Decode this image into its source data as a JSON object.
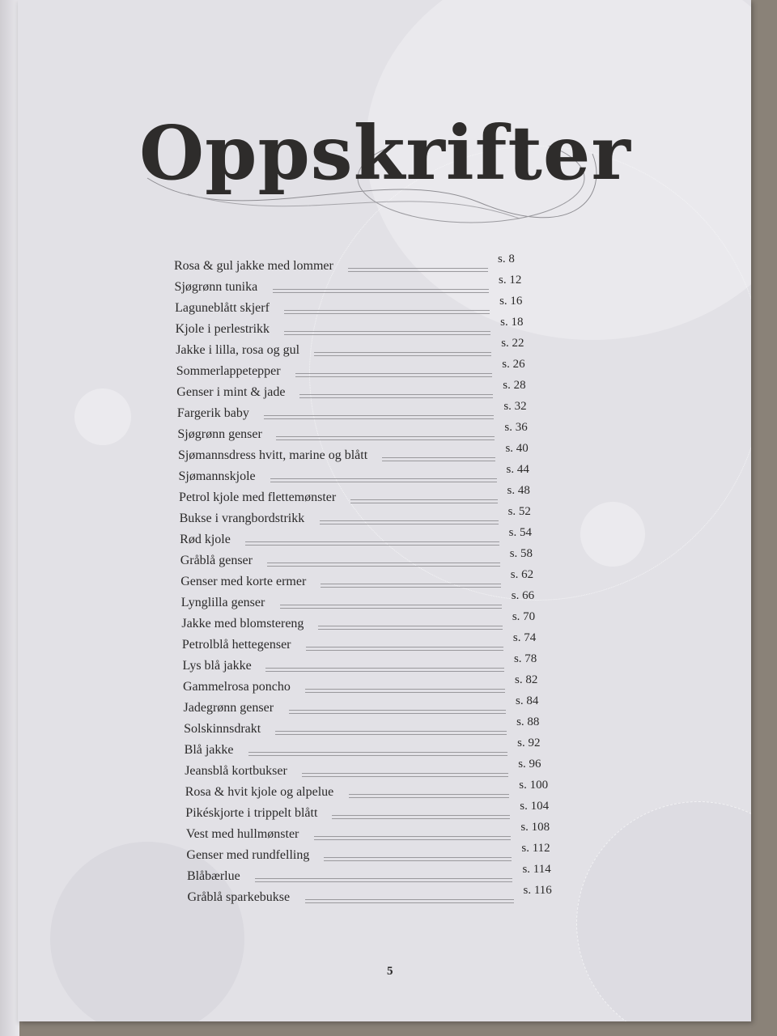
{
  "title": "Oppskrifter",
  "entries": [
    {
      "name": "Rosa & gul jakke med lommer",
      "page": "s. 8"
    },
    {
      "name": "Sjøgrønn tunika",
      "page": "s. 12"
    },
    {
      "name": "Laguneblått skjerf",
      "page": "s. 16"
    },
    {
      "name": "Kjole i perlestrikk",
      "page": "s. 18"
    },
    {
      "name": "Jakke i lilla, rosa og gul",
      "page": "s. 22"
    },
    {
      "name": "Sommerlappetepper",
      "page": "s. 26"
    },
    {
      "name": "Genser i mint & jade",
      "page": "s. 28"
    },
    {
      "name": "Fargerik baby",
      "page": "s. 32"
    },
    {
      "name": "Sjøgrønn genser",
      "page": "s. 36"
    },
    {
      "name": "Sjømannsdress hvitt, marine og blått",
      "page": "s. 40"
    },
    {
      "name": "Sjømannskjole",
      "page": "s. 44"
    },
    {
      "name": "Petrol kjole med flettemønster",
      "page": "s. 48"
    },
    {
      "name": "Bukse i vrangbordstrikk",
      "page": "s. 52"
    },
    {
      "name": "Rød kjole",
      "page": "s. 54"
    },
    {
      "name": "Gråblå genser",
      "page": "s. 58"
    },
    {
      "name": "Genser med korte ermer",
      "page": "s. 62"
    },
    {
      "name": "Lynglilla genser",
      "page": "s. 66"
    },
    {
      "name": "Jakke med blomstereng",
      "page": "s. 70"
    },
    {
      "name": "Petrolblå hettegenser",
      "page": "s. 74"
    },
    {
      "name": "Lys blå jakke",
      "page": "s. 78"
    },
    {
      "name": "Gammelrosa poncho",
      "page": "s. 82"
    },
    {
      "name": "Jadegrønn genser",
      "page": "s. 84"
    },
    {
      "name": "Solskinnsdrakt",
      "page": "s. 88"
    },
    {
      "name": "Blå jakke",
      "page": "s. 92"
    },
    {
      "name": "Jeansblå kortbukser",
      "page": "s. 96"
    },
    {
      "name": "Rosa & hvit  kjole og alpelue",
      "page": "s. 100"
    },
    {
      "name": "Pikéskjorte i trippelt blått",
      "page": "s. 104"
    },
    {
      "name": "Vest med hullmønster",
      "page": "s. 108"
    },
    {
      "name": "Genser med rundfelling",
      "page": "s. 112"
    },
    {
      "name": "Blåbærlue",
      "page": "s. 114"
    },
    {
      "name": "Gråblå sparkebukse",
      "page": "s. 116"
    }
  ],
  "page_number": "5"
}
